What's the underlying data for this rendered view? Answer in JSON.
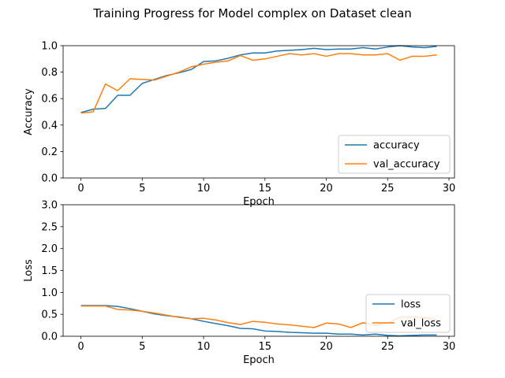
{
  "figure": {
    "title": "Training Progress for Model complex on Dataset clean"
  },
  "colors": {
    "series_1": "#1f77b4",
    "series_2": "#ff7f0e"
  },
  "chart_data": [
    {
      "type": "line",
      "xlabel": "Epoch",
      "ylabel": "Accuracy",
      "xlim": [
        -1.45,
        30.45
      ],
      "ylim": [
        0,
        1.0
      ],
      "xticks": [
        0,
        5,
        10,
        15,
        20,
        25,
        30
      ],
      "yticks": [
        0.0,
        0.2,
        0.4,
        0.6,
        0.8,
        1.0
      ],
      "ytick_format": 1,
      "legend_position": "lower-right",
      "grid": false,
      "x": [
        0,
        1,
        2,
        3,
        4,
        5,
        6,
        7,
        8,
        9,
        10,
        11,
        12,
        13,
        14,
        15,
        16,
        17,
        18,
        19,
        20,
        21,
        22,
        23,
        24,
        25,
        26,
        27,
        28,
        29
      ],
      "series": [
        {
          "name": "accuracy",
          "values": [
            0.495,
            0.52,
            0.525,
            0.625,
            0.625,
            0.715,
            0.745,
            0.775,
            0.795,
            0.82,
            0.88,
            0.885,
            0.905,
            0.93,
            0.945,
            0.945,
            0.96,
            0.965,
            0.97,
            0.98,
            0.97,
            0.975,
            0.975,
            0.985,
            0.975,
            0.99,
            1.0,
            0.99,
            0.985,
            0.995
          ]
        },
        {
          "name": "val_accuracy",
          "values": [
            0.49,
            0.5,
            0.71,
            0.66,
            0.75,
            0.745,
            0.74,
            0.77,
            0.8,
            0.84,
            0.86,
            0.875,
            0.885,
            0.925,
            0.89,
            0.9,
            0.92,
            0.94,
            0.93,
            0.94,
            0.92,
            0.94,
            0.94,
            0.93,
            0.93,
            0.94,
            0.89,
            0.92,
            0.92,
            0.93
          ]
        }
      ]
    },
    {
      "type": "line",
      "xlabel": "Epoch",
      "ylabel": "Loss",
      "xlim": [
        -1.45,
        30.45
      ],
      "ylim": [
        0,
        3.0
      ],
      "xticks": [
        0,
        5,
        10,
        15,
        20,
        25,
        30
      ],
      "yticks": [
        0.0,
        0.5,
        1.0,
        1.5,
        2.0,
        2.5,
        3.0
      ],
      "ytick_format": 1,
      "legend_position": "center-right",
      "grid": false,
      "x": [
        0,
        1,
        2,
        3,
        4,
        5,
        6,
        7,
        8,
        9,
        10,
        11,
        12,
        13,
        14,
        15,
        16,
        17,
        18,
        19,
        20,
        21,
        22,
        23,
        24,
        25,
        26,
        27,
        28,
        29
      ],
      "series": [
        {
          "name": "loss",
          "values": [
            0.7,
            0.7,
            0.7,
            0.68,
            0.63,
            0.57,
            0.51,
            0.47,
            0.44,
            0.4,
            0.34,
            0.29,
            0.24,
            0.18,
            0.17,
            0.12,
            0.11,
            0.09,
            0.08,
            0.07,
            0.07,
            0.05,
            0.05,
            0.03,
            0.05,
            0.02,
            0.01,
            0.02,
            0.03,
            0.03
          ]
        },
        {
          "name": "val_loss",
          "values": [
            0.69,
            0.69,
            0.69,
            0.61,
            0.6,
            0.57,
            0.53,
            0.48,
            0.43,
            0.4,
            0.41,
            0.37,
            0.31,
            0.27,
            0.34,
            0.32,
            0.28,
            0.26,
            0.23,
            0.2,
            0.3,
            0.28,
            0.2,
            0.31,
            0.25,
            0.3,
            0.43,
            0.44,
            0.42,
            0.38
          ]
        }
      ]
    }
  ]
}
